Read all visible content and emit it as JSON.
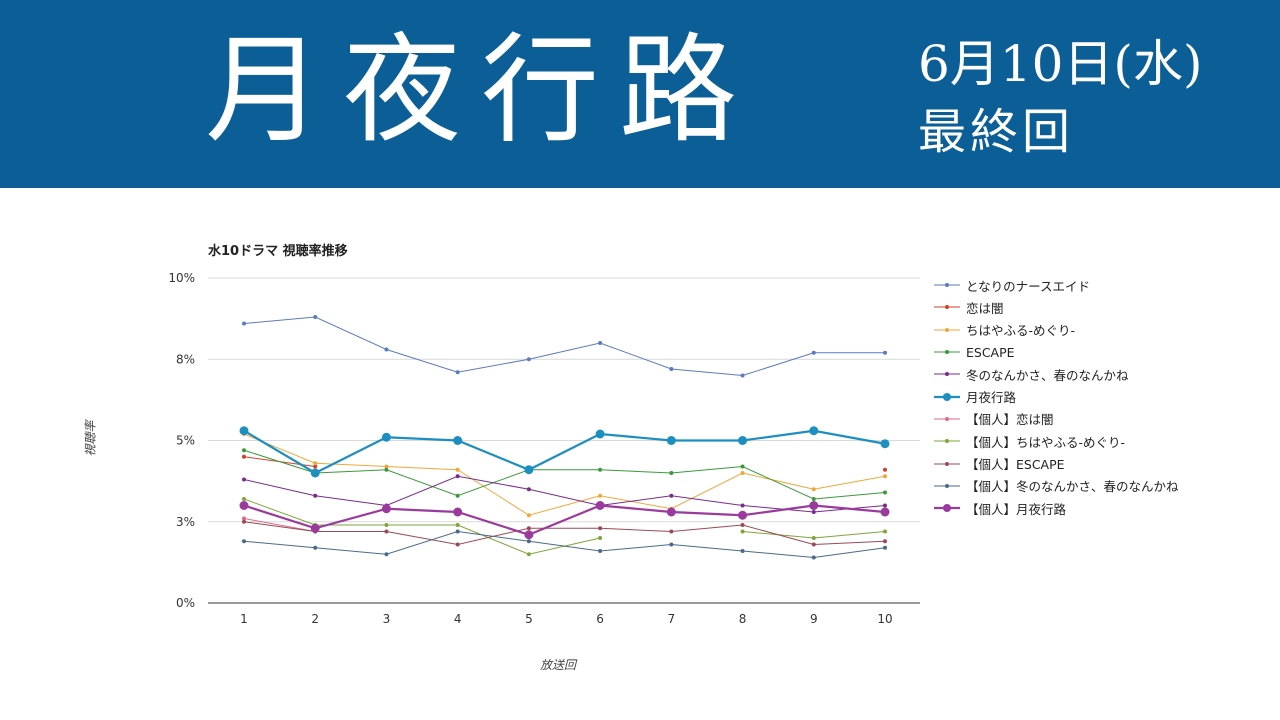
{
  "banner": {
    "title": "月夜行路",
    "date": "6月10日(水)",
    "subtitle": "最終回"
  },
  "colors": {
    "banner": "#0c5f96"
  },
  "chart_data": {
    "type": "line",
    "title": "水10ドラマ 視聴率推移",
    "xlabel": "放送回",
    "ylabel": "視聴率",
    "categories": [
      "1",
      "2",
      "3",
      "4",
      "5",
      "6",
      "7",
      "8",
      "9",
      "10"
    ],
    "y_ticks": [
      "0%",
      "3%",
      "5%",
      "8%",
      "10%"
    ],
    "y_tick_values": [
      0,
      2.5,
      5,
      7.5,
      10
    ],
    "ylim": [
      0,
      10
    ],
    "grid": true,
    "legend_position": "right",
    "series": [
      {
        "name": "となりのナースエイド",
        "color": "#5b7bbf",
        "bold": false,
        "values": [
          8.6,
          8.8,
          7.8,
          7.1,
          7.5,
          8.0,
          7.2,
          7.0,
          7.7,
          7.7
        ]
      },
      {
        "name": "恋は闇",
        "color": "#d43f2a",
        "bold": false,
        "values": [
          4.5,
          4.2,
          null,
          null,
          null,
          null,
          null,
          null,
          null,
          4.1
        ]
      },
      {
        "name": "ちはやふる-めぐり-",
        "color": "#f0a73a",
        "bold": false,
        "values": [
          5.2,
          4.3,
          4.2,
          4.1,
          2.7,
          3.3,
          2.9,
          4.0,
          3.5,
          3.9
        ]
      },
      {
        "name": "ESCAPE",
        "color": "#3a9a3a",
        "bold": false,
        "values": [
          4.7,
          4.0,
          4.1,
          3.3,
          4.1,
          4.1,
          4.0,
          4.2,
          3.2,
          3.4
        ]
      },
      {
        "name": "冬のなんかさ、春のなんかね",
        "color": "#7a2a8c",
        "bold": false,
        "values": [
          3.8,
          3.3,
          3.0,
          3.9,
          3.5,
          3.0,
          3.3,
          3.0,
          2.8,
          3.0
        ]
      },
      {
        "name": "月夜行路",
        "color": "#1c8fc0",
        "bold": true,
        "values": [
          5.3,
          4.0,
          5.1,
          5.0,
          4.1,
          5.2,
          5.0,
          5.0,
          5.3,
          4.9
        ]
      },
      {
        "name": "【個人】恋は闇",
        "color": "#d96a8a",
        "bold": false,
        "values": [
          2.6,
          2.2,
          null,
          null,
          null,
          null,
          null,
          null,
          null,
          null
        ]
      },
      {
        "name": "【個人】ちはやふる-めぐり-",
        "color": "#7ea63a",
        "bold": false,
        "values": [
          3.2,
          2.4,
          2.4,
          2.4,
          1.5,
          2.0,
          null,
          2.2,
          2.0,
          2.2
        ]
      },
      {
        "name": "【個人】ESCAPE",
        "color": "#9a4a55",
        "bold": false,
        "values": [
          2.5,
          2.2,
          2.2,
          1.8,
          2.3,
          2.3,
          2.2,
          2.4,
          1.8,
          1.9
        ]
      },
      {
        "name": "【個人】冬のなんかさ、春のなんかね",
        "color": "#4a6a8a",
        "bold": false,
        "values": [
          1.9,
          1.7,
          1.5,
          2.2,
          1.9,
          1.6,
          1.8,
          1.6,
          1.4,
          1.7
        ]
      },
      {
        "name": "【個人】月夜行路",
        "color": "#9a3a9c",
        "bold": true,
        "values": [
          3.0,
          2.3,
          2.9,
          2.8,
          2.1,
          3.0,
          2.8,
          2.7,
          3.0,
          2.8
        ]
      }
    ]
  }
}
